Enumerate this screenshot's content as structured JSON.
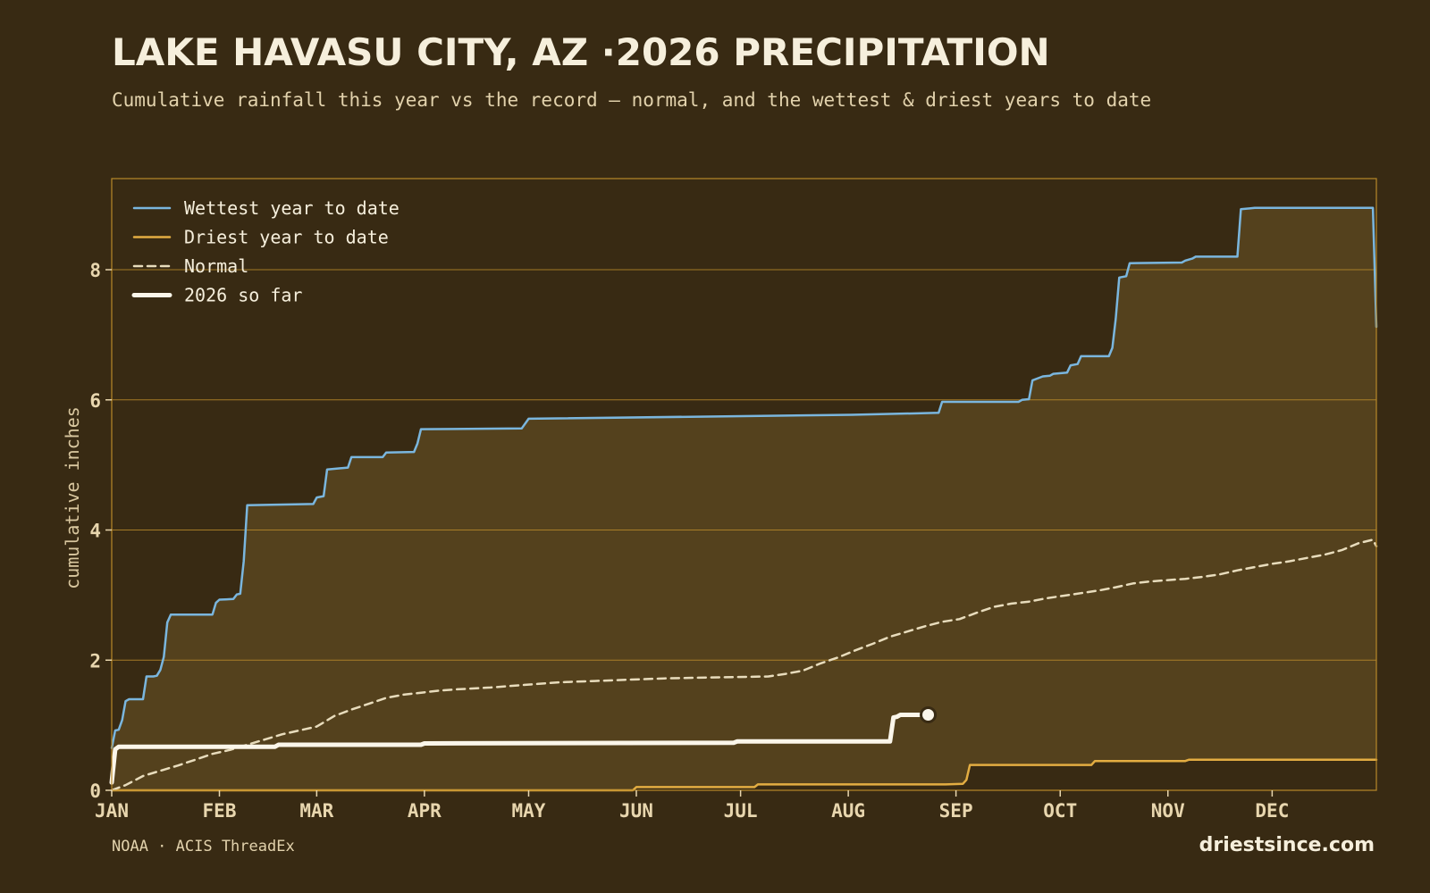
{
  "title": "LAKE HAVASU CITY, AZ ·2026 PRECIPITATION",
  "subtitle": "Cumulative rainfall this year vs the record — normal, and the wettest & driest years to date",
  "footer": {
    "source": "NOAA · ACIS ThreadEx",
    "brand": "driestsince.com"
  },
  "colors": {
    "background": "#382a13",
    "plot_background": "#382a13",
    "band_fill": "#54411d",
    "grid": "#b8892a",
    "wettest": "#7ab6de",
    "driest": "#e3ad42",
    "normal": "#e8dcbc",
    "current": "#fbf6ea"
  },
  "chart_data": {
    "type": "line",
    "xlabel": "",
    "ylabel": "cumulative inches",
    "ylim": [
      0,
      9.4
    ],
    "xlim_day": [
      1,
      365
    ],
    "yticks": [
      "0",
      "2",
      "4",
      "6",
      "8"
    ],
    "xticks": [
      {
        "label": "JAN",
        "day": 1
      },
      {
        "label": "FEB",
        "day": 32
      },
      {
        "label": "MAR",
        "day": 60
      },
      {
        "label": "APR",
        "day": 91
      },
      {
        "label": "MAY",
        "day": 121
      },
      {
        "label": "JUN",
        "day": 152
      },
      {
        "label": "JUL",
        "day": 182
      },
      {
        "label": "AUG",
        "day": 213
      },
      {
        "label": "SEP",
        "day": 244
      },
      {
        "label": "OCT",
        "day": 274
      },
      {
        "label": "NOV",
        "day": 305
      },
      {
        "label": "DEC",
        "day": 335
      }
    ],
    "grid": true,
    "legend": "top-left",
    "series": [
      {
        "name": "Wettest year to date",
        "key": "wettest",
        "points": [
          [
            1,
            0.65
          ],
          [
            2,
            0.92
          ],
          [
            3,
            0.93
          ],
          [
            4,
            1.08
          ],
          [
            5,
            1.37
          ],
          [
            6,
            1.4
          ],
          [
            10,
            1.4
          ],
          [
            11,
            1.75
          ],
          [
            13,
            1.75
          ],
          [
            14,
            1.76
          ],
          [
            15,
            1.85
          ],
          [
            16,
            2.05
          ],
          [
            17,
            2.58
          ],
          [
            18,
            2.7
          ],
          [
            30,
            2.7
          ],
          [
            31,
            2.88
          ],
          [
            32,
            2.93
          ],
          [
            36,
            2.94
          ],
          [
            37,
            3.01
          ],
          [
            38,
            3.02
          ],
          [
            39,
            3.52
          ],
          [
            40,
            4.38
          ],
          [
            59,
            4.4
          ],
          [
            60,
            4.5
          ],
          [
            62,
            4.52
          ],
          [
            63,
            4.93
          ],
          [
            69,
            4.96
          ],
          [
            70,
            5.12
          ],
          [
            79,
            5.12
          ],
          [
            80,
            5.19
          ],
          [
            88,
            5.2
          ],
          [
            89,
            5.33
          ],
          [
            90,
            5.55
          ],
          [
            119,
            5.56
          ],
          [
            121,
            5.71
          ],
          [
            214,
            5.77
          ],
          [
            239,
            5.8
          ],
          [
            240,
            5.97
          ],
          [
            262,
            5.97
          ],
          [
            263,
            6.0
          ],
          [
            265,
            6.01
          ],
          [
            266,
            6.3
          ],
          [
            268,
            6.34
          ],
          [
            269,
            6.36
          ],
          [
            271,
            6.37
          ],
          [
            272,
            6.4
          ],
          [
            276,
            6.42
          ],
          [
            277,
            6.53
          ],
          [
            279,
            6.55
          ],
          [
            280,
            6.67
          ],
          [
            288,
            6.67
          ],
          [
            289,
            6.8
          ],
          [
            290,
            7.25
          ],
          [
            291,
            7.88
          ],
          [
            293,
            7.9
          ],
          [
            294,
            8.1
          ],
          [
            309,
            8.11
          ],
          [
            310,
            8.14
          ],
          [
            312,
            8.17
          ],
          [
            313,
            8.2
          ],
          [
            325,
            8.2
          ],
          [
            326,
            8.93
          ],
          [
            330,
            8.95
          ],
          [
            364,
            8.95
          ],
          [
            365,
            7.12
          ]
        ]
      },
      {
        "name": "Driest year to date",
        "key": "driest",
        "points": [
          [
            1,
            0.0
          ],
          [
            151,
            0.0
          ],
          [
            152,
            0.05
          ],
          [
            186,
            0.05
          ],
          [
            187,
            0.09
          ],
          [
            241,
            0.09
          ],
          [
            246,
            0.1
          ],
          [
            247,
            0.16
          ],
          [
            248,
            0.39
          ],
          [
            283,
            0.39
          ],
          [
            284,
            0.45
          ],
          [
            310,
            0.45
          ],
          [
            311,
            0.47
          ],
          [
            365,
            0.47
          ]
        ]
      },
      {
        "name": "Normal",
        "key": "normal",
        "points": [
          [
            1,
            0.0
          ],
          [
            5,
            0.08
          ],
          [
            10,
            0.22
          ],
          [
            15,
            0.3
          ],
          [
            20,
            0.38
          ],
          [
            25,
            0.47
          ],
          [
            30,
            0.56
          ],
          [
            35,
            0.62
          ],
          [
            40,
            0.7
          ],
          [
            45,
            0.78
          ],
          [
            50,
            0.86
          ],
          [
            55,
            0.92
          ],
          [
            60,
            0.98
          ],
          [
            65,
            1.14
          ],
          [
            70,
            1.24
          ],
          [
            75,
            1.33
          ],
          [
            80,
            1.42
          ],
          [
            85,
            1.47
          ],
          [
            90,
            1.5
          ],
          [
            95,
            1.53
          ],
          [
            100,
            1.55
          ],
          [
            110,
            1.58
          ],
          [
            120,
            1.62
          ],
          [
            130,
            1.66
          ],
          [
            140,
            1.68
          ],
          [
            150,
            1.7
          ],
          [
            160,
            1.72
          ],
          [
            170,
            1.73
          ],
          [
            180,
            1.74
          ],
          [
            190,
            1.75
          ],
          [
            195,
            1.79
          ],
          [
            200,
            1.84
          ],
          [
            205,
            1.95
          ],
          [
            210,
            2.04
          ],
          [
            215,
            2.15
          ],
          [
            220,
            2.25
          ],
          [
            225,
            2.36
          ],
          [
            230,
            2.44
          ],
          [
            235,
            2.52
          ],
          [
            240,
            2.59
          ],
          [
            245,
            2.63
          ],
          [
            250,
            2.73
          ],
          [
            255,
            2.82
          ],
          [
            260,
            2.87
          ],
          [
            265,
            2.9
          ],
          [
            270,
            2.95
          ],
          [
            275,
            2.99
          ],
          [
            280,
            3.03
          ],
          [
            285,
            3.07
          ],
          [
            290,
            3.12
          ],
          [
            295,
            3.18
          ],
          [
            300,
            3.21
          ],
          [
            305,
            3.23
          ],
          [
            310,
            3.25
          ],
          [
            315,
            3.28
          ],
          [
            320,
            3.32
          ],
          [
            325,
            3.38
          ],
          [
            330,
            3.43
          ],
          [
            335,
            3.48
          ],
          [
            340,
            3.52
          ],
          [
            345,
            3.57
          ],
          [
            350,
            3.62
          ],
          [
            355,
            3.69
          ],
          [
            360,
            3.8
          ],
          [
            364,
            3.85
          ],
          [
            365,
            3.75
          ]
        ]
      },
      {
        "name": "2026 so far",
        "key": "current",
        "points": [
          [
            1,
            0.12
          ],
          [
            2,
            0.63
          ],
          [
            3,
            0.67
          ],
          [
            48,
            0.67
          ],
          [
            49,
            0.7
          ],
          [
            90,
            0.7
          ],
          [
            91,
            0.72
          ],
          [
            180,
            0.73
          ],
          [
            181,
            0.75
          ],
          [
            225,
            0.75
          ],
          [
            226,
            1.12
          ],
          [
            227,
            1.13
          ],
          [
            228,
            1.16
          ],
          [
            236,
            1.16
          ]
        ]
      }
    ]
  }
}
